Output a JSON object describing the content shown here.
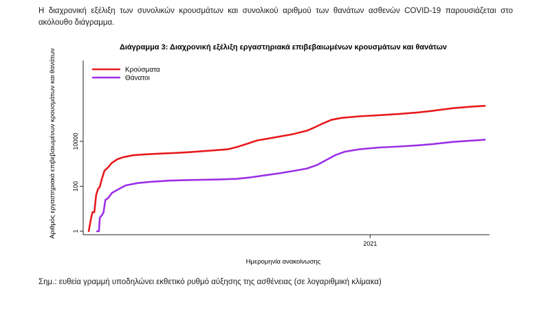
{
  "intro_text": "Η διαχρονική εξέλιξη των συνολικών κρουσμάτων και συνολικού αριθμού των θανάτων ασθενών COVID-19 παρουσιάζεται στο ακόλουθο διάγραμμα.",
  "note_text": "Σημ.: ευθεία γραμμή υποδηλώνει εκθετικό ρυθμό αύξησης της ασθένειας (σε λογαριθμική κλίμακα)",
  "colors": {
    "cases": "#e8191d",
    "deaths": "#9b2fe6"
  },
  "chart_data": {
    "type": "line",
    "title": "Διάγραμμα 3: Διαχρονική εξέλιξη εργαστηριακά επιβεβαιωμένων κρουσμάτων και θανάτων",
    "xlabel": "Ημερομηνία ανακοίνωσης",
    "ylabel": "Αριθμός εργαστηριακά επιβεβαιωμένων κρουσμάτων και θανάτων",
    "y_scale": "log",
    "ylim": [
      0.7,
      40000000
    ],
    "yticks": [
      1,
      100,
      10000
    ],
    "ytick_labels": [
      "1",
      "100",
      "10000"
    ],
    "xlim": [
      "2020-02-26",
      "2021-05-10"
    ],
    "xticks": [
      "2021-01-01"
    ],
    "xtick_labels": [
      "2021"
    ],
    "grid": false,
    "legend": "top-left",
    "series": [
      {
        "name": "Κρούσματα",
        "points": [
          [
            "2020-03-03",
            1
          ],
          [
            "2020-03-05",
            3
          ],
          [
            "2020-03-07",
            7
          ],
          [
            "2020-03-09",
            7
          ],
          [
            "2020-03-11",
            40
          ],
          [
            "2020-03-13",
            75
          ],
          [
            "2020-03-15",
            95
          ],
          [
            "2020-03-17",
            200
          ],
          [
            "2020-03-20",
            500
          ],
          [
            "2020-03-24",
            700
          ],
          [
            "2020-03-28",
            1100
          ],
          [
            "2020-04-03",
            1600
          ],
          [
            "2020-04-10",
            2000
          ],
          [
            "2020-04-20",
            2400
          ],
          [
            "2020-05-01",
            2600
          ],
          [
            "2020-05-15",
            2800
          ],
          [
            "2020-06-01",
            3000
          ],
          [
            "2020-06-20",
            3300
          ],
          [
            "2020-07-10",
            3800
          ],
          [
            "2020-07-31",
            4400
          ],
          [
            "2020-08-10",
            5600
          ],
          [
            "2020-08-20",
            7500
          ],
          [
            "2020-09-01",
            11000
          ],
          [
            "2020-09-20",
            15000
          ],
          [
            "2020-10-10",
            21000
          ],
          [
            "2020-10-25",
            30000
          ],
          [
            "2020-11-01",
            40000
          ],
          [
            "2020-11-10",
            60000
          ],
          [
            "2020-11-20",
            90000
          ],
          [
            "2020-12-01",
            110000
          ],
          [
            "2020-12-20",
            130000
          ],
          [
            "2021-01-10",
            145000
          ],
          [
            "2021-02-01",
            165000
          ],
          [
            "2021-02-20",
            190000
          ],
          [
            "2021-03-10",
            230000
          ],
          [
            "2021-04-01",
            300000
          ],
          [
            "2021-04-20",
            350000
          ],
          [
            "2021-05-05",
            380000
          ]
        ]
      },
      {
        "name": "Θάνατοι",
        "points": [
          [
            "2020-03-12",
            1
          ],
          [
            "2020-03-14",
            1
          ],
          [
            "2020-03-15",
            4
          ],
          [
            "2020-03-17",
            5
          ],
          [
            "2020-03-19",
            7
          ],
          [
            "2020-03-21",
            25
          ],
          [
            "2020-03-24",
            30
          ],
          [
            "2020-03-28",
            50
          ],
          [
            "2020-04-03",
            70
          ],
          [
            "2020-04-12",
            110
          ],
          [
            "2020-04-25",
            140
          ],
          [
            "2020-05-10",
            160
          ],
          [
            "2020-05-30",
            180
          ],
          [
            "2020-06-20",
            190
          ],
          [
            "2020-07-20",
            200
          ],
          [
            "2020-08-10",
            215
          ],
          [
            "2020-08-25",
            250
          ],
          [
            "2020-09-10",
            310
          ],
          [
            "2020-09-25",
            380
          ],
          [
            "2020-10-10",
            480
          ],
          [
            "2020-10-25",
            620
          ],
          [
            "2020-11-05",
            900
          ],
          [
            "2020-11-15",
            1500
          ],
          [
            "2020-11-25",
            2500
          ],
          [
            "2020-12-05",
            3500
          ],
          [
            "2020-12-20",
            4400
          ],
          [
            "2021-01-10",
            5300
          ],
          [
            "2021-02-01",
            5900
          ],
          [
            "2021-02-20",
            6600
          ],
          [
            "2021-03-10",
            7600
          ],
          [
            "2021-04-01",
            9500
          ],
          [
            "2021-04-20",
            10800
          ],
          [
            "2021-05-05",
            11800
          ]
        ]
      }
    ]
  }
}
